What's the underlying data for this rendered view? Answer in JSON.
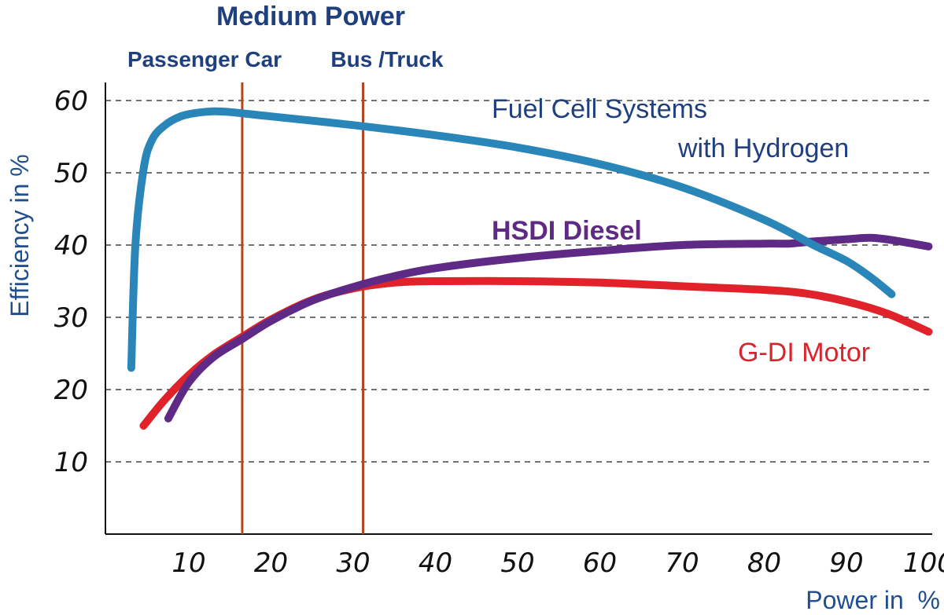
{
  "chart_data": {
    "type": "line",
    "title": "Medium Power",
    "xlabel": "Power in  %",
    "ylabel": "Efficiency in %",
    "xlim": [
      2,
      100
    ],
    "ylim": [
      0,
      60
    ],
    "x_ticks": [
      10,
      20,
      30,
      40,
      50,
      60,
      70,
      80,
      90,
      100
    ],
    "y_ticks": [
      10,
      20,
      30,
      40,
      50,
      60
    ],
    "grid": "horizontal-dashed",
    "markers": [
      {
        "label": "Passenger Car",
        "x": 16.5,
        "color": "#b5441f"
      },
      {
        "label": "Bus /Truck",
        "x": 31.2,
        "color": "#b5441f"
      }
    ],
    "series": [
      {
        "name": "Fuel Cell Systems with Hydrogen",
        "name_lines": [
          "Fuel Cell Systems",
          "with Hydrogen"
        ],
        "color": "#2a86b8",
        "label_color": "#1f3f7f",
        "x": [
          3,
          3.5,
          4.5,
          5.5,
          7,
          9,
          11,
          13,
          15,
          20,
          30,
          40,
          50,
          60,
          70,
          80,
          86,
          90,
          93,
          95.5
        ],
        "y": [
          23,
          40,
          50.5,
          54.5,
          56.5,
          57.8,
          58.3,
          58.5,
          58.4,
          57.8,
          56.6,
          55.2,
          53.5,
          51.2,
          48,
          43.5,
          40,
          37.8,
          35.5,
          33.2
        ]
      },
      {
        "name": "HSDI Diesel",
        "color": "#5e2a86",
        "label_color": "#5e2a86",
        "x": [
          7.5,
          10,
          13,
          16.5,
          20,
          25,
          30,
          35,
          40,
          50,
          60,
          70,
          80,
          83,
          86,
          90,
          93,
          96,
          100
        ],
        "y": [
          16,
          21,
          24.5,
          27,
          29.5,
          32.3,
          34.2,
          35.7,
          36.8,
          38.2,
          39.2,
          40,
          40.2,
          40.2,
          40.5,
          40.8,
          41,
          40.6,
          39.8
        ]
      },
      {
        "name": "G-DI Motor",
        "color": "#e0222b",
        "label_color": "#d8242c",
        "x": [
          4.5,
          7,
          10,
          13,
          16.5,
          20,
          25,
          30,
          35,
          40,
          50,
          60,
          70,
          80,
          85,
          90,
          95,
          100
        ],
        "y": [
          15,
          18.5,
          22,
          24.8,
          27.3,
          29.7,
          32.4,
          34,
          34.8,
          35,
          35,
          34.8,
          34.3,
          33.8,
          33.3,
          32.2,
          30.5,
          28
        ]
      }
    ]
  }
}
